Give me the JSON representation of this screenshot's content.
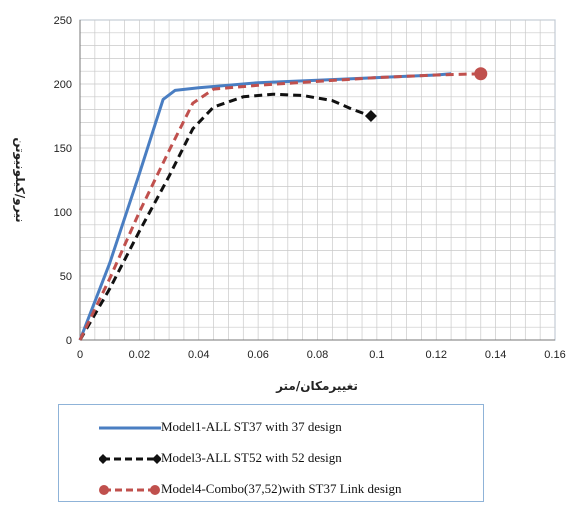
{
  "chart_data": {
    "type": "line",
    "xlabel": "تغییرمکان/متر",
    "ylabel": "نیرو/کیلونیوتن",
    "xlim": [
      0,
      0.16
    ],
    "ylim": [
      0,
      250
    ],
    "xticks": [
      "0",
      "0.02",
      "0.04",
      "0.06",
      "0.08",
      "0.1",
      "0.12",
      "0.14",
      "0.16"
    ],
    "yticks": [
      "0",
      "50",
      "100",
      "150",
      "200",
      "250"
    ],
    "grid": true,
    "legend_position": "bottom",
    "series": [
      {
        "name": "Model1-ALL ST37 with 37 design",
        "color": "#4a7ec2",
        "style": "solid",
        "marker": "none",
        "points": [
          [
            0,
            0
          ],
          [
            0.01,
            60
          ],
          [
            0.02,
            130
          ],
          [
            0.028,
            188
          ],
          [
            0.032,
            195
          ],
          [
            0.04,
            197
          ],
          [
            0.06,
            201
          ],
          [
            0.08,
            203
          ],
          [
            0.1,
            205
          ],
          [
            0.12,
            207
          ],
          [
            0.125,
            208
          ]
        ]
      },
      {
        "name": "Model3-ALL ST52 with 52 design",
        "color": "#111111",
        "style": "dashed",
        "marker": "diamond",
        "points": [
          [
            0,
            0
          ],
          [
            0.01,
            40
          ],
          [
            0.02,
            85
          ],
          [
            0.03,
            128
          ],
          [
            0.038,
            165
          ],
          [
            0.045,
            182
          ],
          [
            0.055,
            190
          ],
          [
            0.065,
            192
          ],
          [
            0.075,
            191
          ],
          [
            0.085,
            187
          ],
          [
            0.092,
            180
          ],
          [
            0.098,
            175
          ]
        ]
      },
      {
        "name": "Model4-Combo(37,52)with ST37 Link design",
        "color": "#c0504d",
        "style": "dashed",
        "marker": "circle",
        "points": [
          [
            0,
            0
          ],
          [
            0.01,
            48
          ],
          [
            0.02,
            100
          ],
          [
            0.03,
            148
          ],
          [
            0.038,
            185
          ],
          [
            0.045,
            196
          ],
          [
            0.06,
            199
          ],
          [
            0.08,
            202
          ],
          [
            0.1,
            205
          ],
          [
            0.12,
            207
          ],
          [
            0.135,
            208
          ]
        ]
      }
    ]
  }
}
